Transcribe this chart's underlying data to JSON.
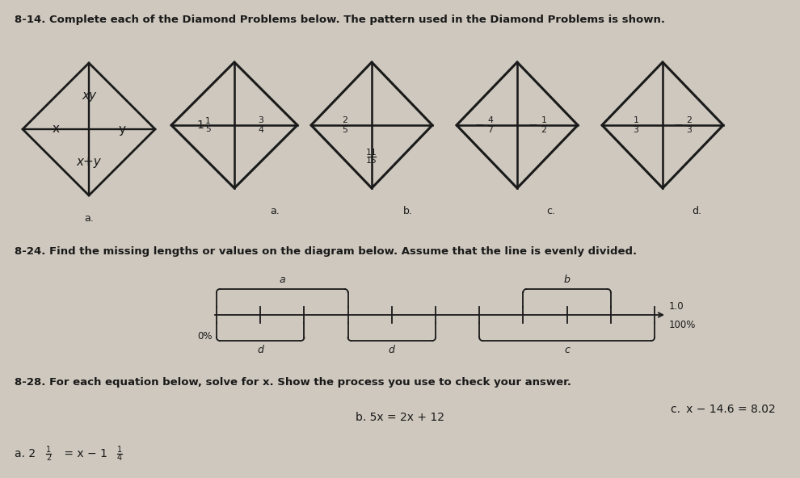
{
  "title_814": "8-14. Complete each of the Diamond Problems below. The pattern used in the Diamond Problems is shown.",
  "title_824": "8-24. Find the missing lengths or values on the diagram below. Assume that the line is evenly divided.",
  "title_828": "8-28. For each equation below, solve for x. Show the process you use to check your answer.",
  "eq_a": "a. 2$\\frac{1}{2}$ = x − 1$\\frac{1}{4}$",
  "eq_b": "b. 5x = 2x + 12",
  "eq_c": "c. x − 14.6 = 8.02",
  "bg_color": "#cec8be",
  "diamond_color": "#1a1a1a",
  "text_color": "#1a1a1a",
  "label_color": "#333333"
}
